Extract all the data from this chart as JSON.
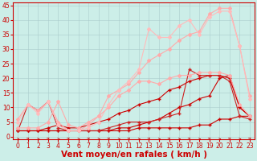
{
  "xlabel": "Vent moyen/en rafales ( km/h )",
  "bg_color": "#cceee8",
  "grid_color": "#aacccc",
  "xlim": [
    -0.5,
    23.5
  ],
  "ylim": [
    -1,
    46
  ],
  "yticks": [
    0,
    5,
    10,
    15,
    20,
    25,
    30,
    35,
    40,
    45
  ],
  "xticks": [
    0,
    1,
    2,
    3,
    4,
    5,
    6,
    7,
    8,
    9,
    10,
    11,
    12,
    13,
    14,
    15,
    16,
    17,
    18,
    19,
    20,
    21,
    22,
    23
  ],
  "lines": [
    {
      "x": [
        0,
        1,
        2,
        3,
        4,
        5,
        6,
        7,
        8,
        9,
        10,
        11,
        12,
        13,
        14,
        15,
        16,
        17,
        18,
        19,
        20,
        21,
        22,
        23
      ],
      "y": [
        2,
        2,
        2,
        2,
        2,
        2,
        2,
        2,
        2,
        2,
        2,
        2,
        3,
        3,
        3,
        3,
        3,
        3,
        4,
        4,
        6,
        6,
        7,
        7
      ],
      "color": "#cc0000",
      "lw": 0.8,
      "marker": "+",
      "ms": 3.0
    },
    {
      "x": [
        0,
        1,
        2,
        3,
        4,
        5,
        6,
        7,
        8,
        9,
        10,
        11,
        12,
        13,
        14,
        15,
        16,
        17,
        18,
        19,
        20,
        21,
        22,
        23
      ],
      "y": [
        2,
        2,
        2,
        2,
        2,
        2,
        2,
        2,
        2,
        2,
        3,
        3,
        4,
        5,
        6,
        8,
        10,
        11,
        13,
        14,
        20,
        21,
        10,
        7
      ],
      "color": "#cc0000",
      "lw": 0.8,
      "marker": "+",
      "ms": 3.0
    },
    {
      "x": [
        0,
        1,
        2,
        3,
        4,
        5,
        6,
        7,
        8,
        9,
        10,
        11,
        12,
        13,
        14,
        15,
        16,
        17,
        18,
        19,
        20,
        21,
        22,
        23
      ],
      "y": [
        2,
        2,
        2,
        3,
        4,
        3,
        3,
        4,
        5,
        6,
        8,
        9,
        11,
        12,
        13,
        16,
        17,
        19,
        20,
        21,
        21,
        20,
        10,
        7
      ],
      "color": "#cc0000",
      "lw": 0.8,
      "marker": "+",
      "ms": 3.0
    },
    {
      "x": [
        0,
        1,
        2,
        3,
        4,
        5,
        6,
        7,
        8,
        9,
        10,
        11,
        12,
        13,
        14,
        15,
        16,
        17,
        18,
        19,
        20,
        21,
        22,
        23
      ],
      "y": [
        2,
        11,
        9,
        12,
        3,
        2,
        2,
        2,
        2,
        3,
        4,
        5,
        5,
        5,
        6,
        7,
        8,
        23,
        21,
        21,
        21,
        19,
        7,
        6
      ],
      "color": "#cc2222",
      "lw": 0.8,
      "marker": "+",
      "ms": 3.0
    },
    {
      "x": [
        0,
        1,
        2,
        3,
        4,
        5,
        6,
        7,
        8,
        9,
        10,
        11,
        12,
        13,
        14,
        15,
        16,
        17,
        18,
        19,
        20,
        21,
        22,
        23
      ],
      "y": [
        6,
        11,
        9,
        12,
        5,
        2,
        2,
        4,
        7,
        14,
        16,
        18,
        22,
        26,
        28,
        30,
        33,
        35,
        36,
        42,
        44,
        44,
        31,
        14
      ],
      "color": "#ffaaaa",
      "lw": 0.8,
      "marker": "D",
      "ms": 2.0
    },
    {
      "x": [
        0,
        1,
        2,
        3,
        4,
        5,
        6,
        7,
        8,
        9,
        10,
        11,
        12,
        13,
        14,
        15,
        16,
        17,
        18,
        19,
        20,
        21,
        22,
        23
      ],
      "y": [
        3,
        3,
        3,
        5,
        12,
        4,
        3,
        5,
        7,
        10,
        14,
        16,
        19,
        19,
        18,
        20,
        21,
        21,
        22,
        22,
        22,
        21,
        11,
        7
      ],
      "color": "#ffaaaa",
      "lw": 0.8,
      "marker": "D",
      "ms": 2.0
    },
    {
      "x": [
        0,
        1,
        2,
        3,
        4,
        5,
        6,
        7,
        8,
        9,
        10,
        11,
        12,
        13,
        14,
        15,
        16,
        17,
        18,
        19,
        20,
        21,
        22,
        23
      ],
      "y": [
        5,
        11,
        8,
        12,
        4,
        2,
        2,
        3,
        5,
        11,
        16,
        19,
        23,
        37,
        34,
        34,
        38,
        40,
        35,
        41,
        43,
        43,
        31,
        13
      ],
      "color": "#ffbbbb",
      "lw": 0.8,
      "marker": "D",
      "ms": 2.0
    }
  ],
  "arrow_color": "#cc0000",
  "tick_color": "#cc0000",
  "label_color": "#cc0000",
  "tick_fontsize": 5.5,
  "label_fontsize": 7.5
}
